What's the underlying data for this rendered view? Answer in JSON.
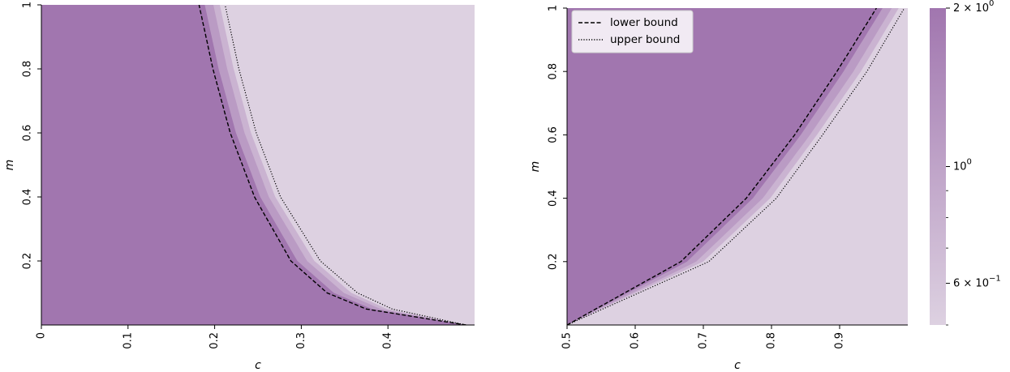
{
  "colors": {
    "high": "#a176af",
    "low": "#ddd1e1",
    "lower_bound_line": "#000000",
    "upper_bound_line": "#000000"
  },
  "colorbar": {
    "scale": "log",
    "range": [
      0.5,
      2.0
    ],
    "ticks": [
      {
        "value": 2.0,
        "label": "2 × 10^0",
        "base": "2 × 10",
        "exp": "0"
      },
      {
        "value": 1.0,
        "label": "10^0",
        "base": "10",
        "exp": "0"
      },
      {
        "value": 0.6,
        "label": "6 × 10^-1",
        "base": "6 × 10",
        "exp": "−1"
      }
    ],
    "minor_ticks": [
      0.5,
      0.7,
      0.8,
      0.9
    ]
  },
  "chart_data": [
    {
      "type": "heatmap",
      "xlabel": "c",
      "ylabel": "m",
      "xlim": [
        0,
        0.5
      ],
      "ylim": [
        0,
        1
      ],
      "xticks": [
        {
          "value": 0,
          "label": "0"
        },
        {
          "value": 0.1,
          "label": "0.1"
        },
        {
          "value": 0.2,
          "label": "0.2"
        },
        {
          "value": 0.3,
          "label": "0.3"
        },
        {
          "value": 0.4,
          "label": "0.4"
        }
      ],
      "yticks": [
        {
          "value": 0.2,
          "label": "0.2"
        },
        {
          "value": 0.4,
          "label": "0.4"
        },
        {
          "value": 0.6,
          "label": "0.6"
        },
        {
          "value": 0.8,
          "label": "0.8"
        },
        {
          "value": 1.0,
          "label": "1"
        }
      ],
      "lower_bound": {
        "m": [
          1.0,
          0.8,
          0.6,
          0.4,
          0.2,
          0.1,
          0.05,
          0.0
        ],
        "c": [
          0.182,
          0.198,
          0.218,
          0.246,
          0.288,
          0.33,
          0.375,
          0.49
        ]
      },
      "upper_bound": {
        "m": [
          1.0,
          0.8,
          0.6,
          0.4,
          0.2,
          0.1,
          0.05,
          0.0
        ],
        "c": [
          0.212,
          0.228,
          0.248,
          0.276,
          0.322,
          0.365,
          0.405,
          0.49
        ]
      },
      "legend": []
    },
    {
      "type": "heatmap",
      "xlabel": "c",
      "ylabel": "m",
      "xlim": [
        0.5,
        1.0
      ],
      "ylim": [
        0,
        1
      ],
      "xticks": [
        {
          "value": 0.5,
          "label": "0.5"
        },
        {
          "value": 0.6,
          "label": "0.6"
        },
        {
          "value": 0.7,
          "label": "0.7"
        },
        {
          "value": 0.8,
          "label": "0.8"
        },
        {
          "value": 0.9,
          "label": "0.9"
        }
      ],
      "yticks": [
        {
          "value": 0.2,
          "label": "0.2"
        },
        {
          "value": 0.4,
          "label": "0.4"
        },
        {
          "value": 0.6,
          "label": "0.6"
        },
        {
          "value": 0.8,
          "label": "0.8"
        },
        {
          "value": 1.0,
          "label": "1"
        }
      ],
      "lower_bound": {
        "m": [
          0.0,
          0.2,
          0.4,
          0.6,
          0.8,
          1.0
        ],
        "c": [
          0.5,
          0.667,
          0.763,
          0.834,
          0.896,
          0.954
        ]
      },
      "upper_bound": {
        "m": [
          0.0,
          0.2,
          0.4,
          0.6,
          0.8,
          1.0
        ],
        "c": [
          0.5,
          0.708,
          0.807,
          0.875,
          0.94,
          0.995
        ]
      },
      "legend": [
        {
          "label": "lower bound",
          "style": "dashed"
        },
        {
          "label": "upper bound",
          "style": "dotted"
        }
      ],
      "legend_placement": "top-left"
    }
  ]
}
